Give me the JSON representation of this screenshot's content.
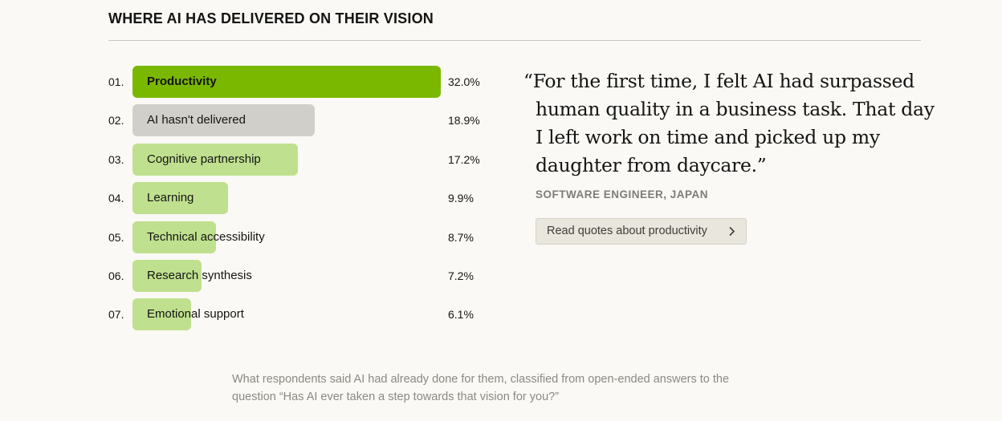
{
  "section_title": "WHERE AI HAS DELIVERED ON THEIR VISION",
  "chart_data": {
    "type": "bar",
    "orientation": "horizontal",
    "title": "WHERE AI HAS DELIVERED ON THEIR VISION",
    "ranks": [
      "01.",
      "02.",
      "03.",
      "04.",
      "05.",
      "06.",
      "07."
    ],
    "categories": [
      "Productivity",
      "AI hasn't delivered",
      "Cognitive partnership",
      "Learning",
      "Technical accessibility",
      "Research synthesis",
      "Emotional support"
    ],
    "values": [
      32.0,
      18.9,
      17.2,
      9.9,
      8.7,
      7.2,
      6.1
    ],
    "value_labels": [
      "32.0%",
      "18.9%",
      "17.2%",
      "9.9%",
      "8.7%",
      "7.2%",
      "6.1%"
    ],
    "unit": "%",
    "colors": {
      "highlight": "#7ab800",
      "neutral": "#d0cfca",
      "default": "#bfe08e"
    },
    "highlight_index": 0,
    "neutral_index": 1
  },
  "quote": {
    "lines": [
      "“For the first time, I felt AI had surpassed",
      "human quality in a business task. That day",
      "I left work on time and picked up my",
      "daughter from daycare.”"
    ],
    "attribution": "SOFTWARE ENGINEER, JAPAN"
  },
  "button": {
    "label": "Read quotes about productivity",
    "icon": "chevron-right-icon"
  },
  "caption": {
    "line1": "What respondents said AI had already done for them, classified from open-ended answers to the",
    "line2": "question “Has AI ever taken a step towards that vision for you?”"
  }
}
